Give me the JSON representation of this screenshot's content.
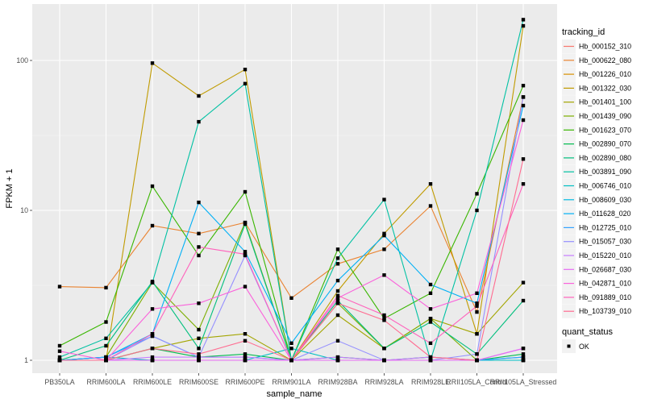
{
  "chart_data": {
    "type": "line",
    "title": "",
    "xlabel": "sample_name",
    "ylabel": "FPKM + 1",
    "yscale": "log10",
    "ylim": [
      0.9,
      200
    ],
    "y_ticks": [
      1,
      10,
      100
    ],
    "y_tick_labels": [
      "1",
      "10",
      "100"
    ],
    "grid": true,
    "categories": [
      "PB350LA",
      "RRIM600LA",
      "RRIM600LE",
      "RRIM600SE",
      "RRIM600PE",
      "RRIM901LA",
      "RRIM928BA",
      "RRIM928LA",
      "RRIM928LE",
      "RRII105LA_Control",
      "RRII105LA_Stressed"
    ],
    "legend": {
      "position": "right",
      "title": "tracking_id",
      "shape_title": "quant_status",
      "shape_label": "OK"
    },
    "series": [
      {
        "name": "Hb_000152_310",
        "color": "#F8766D",
        "values": [
          1.0,
          1.0,
          1.0,
          1.0,
          1.0,
          1.0,
          1.0,
          1.0,
          1.0,
          1.0,
          1.0
        ]
      },
      {
        "name": "Hb_000622_080",
        "color": "#EA8331",
        "values": [
          3.1,
          3.05,
          7.9,
          7.0,
          8.3,
          2.6,
          4.4,
          5.5,
          10.7,
          2.1,
          57
        ]
      },
      {
        "name": "Hb_001226_010",
        "color": "#D89000",
        "values": [
          1.0,
          1.0,
          1.0,
          1.0,
          1.0,
          1.0,
          1.0,
          1.0,
          1.0,
          1.0,
          1.0
        ]
      },
      {
        "name": "Hb_001322_030",
        "color": "#C09B00",
        "values": [
          1.0,
          1.0,
          96,
          58,
          87,
          1.0,
          2.9,
          7.0,
          15,
          1.5,
          170
        ]
      },
      {
        "name": "Hb_001401_100",
        "color": "#A3A500",
        "values": [
          1.0,
          1.0,
          1.2,
          1.4,
          1.5,
          1.0,
          2.0,
          1.2,
          1.9,
          1.5,
          3.3
        ]
      },
      {
        "name": "Hb_001439_090",
        "color": "#7CAE00",
        "values": [
          1.0,
          1.05,
          3.3,
          1.6,
          8.3,
          1.0,
          2.4,
          1.2,
          1.9,
          1.0,
          1.0
        ]
      },
      {
        "name": "Hb_001623_070",
        "color": "#39B600",
        "values": [
          1.25,
          1.8,
          14.5,
          5.0,
          13.3,
          1.0,
          5.5,
          1.9,
          2.8,
          12.9,
          68
        ]
      },
      {
        "name": "Hb_002890_070",
        "color": "#00BB4E",
        "values": [
          1.0,
          1.0,
          1.2,
          1.05,
          1.1,
          1.0,
          1.05,
          1.0,
          1.05,
          1.0,
          1.1
        ]
      },
      {
        "name": "Hb_002890_080",
        "color": "#00BF7D",
        "values": [
          1.0,
          1.25,
          3.35,
          1.2,
          8.1,
          1.0,
          2.5,
          1.2,
          1.8,
          1.1,
          2.5
        ]
      },
      {
        "name": "Hb_003891_090",
        "color": "#00C1A3",
        "values": [
          1.05,
          1.4,
          3.3,
          39,
          70,
          1.0,
          4.8,
          11.8,
          1.0,
          10.0,
          187
        ]
      },
      {
        "name": "Hb_006746_010",
        "color": "#00BFC4",
        "values": [
          1.0,
          1.05,
          1.0,
          1.0,
          1.0,
          1.2,
          1.0,
          1.0,
          1.0,
          1.0,
          1.0
        ]
      },
      {
        "name": "Hb_008609_030",
        "color": "#00BAE0",
        "values": [
          1.0,
          1.0,
          1.0,
          1.0,
          1.0,
          1.0,
          1.0,
          1.0,
          1.0,
          1.0,
          1.05
        ]
      },
      {
        "name": "Hb_011628_020",
        "color": "#00B0F6",
        "values": [
          1.0,
          1.05,
          1.5,
          11.3,
          5.3,
          1.3,
          3.4,
          6.8,
          3.2,
          2.4,
          50
        ]
      },
      {
        "name": "Hb_012725_010",
        "color": "#35A2FF",
        "values": [
          1.0,
          1.05,
          1.45,
          1.05,
          1.05,
          1.0,
          1.0,
          1.0,
          1.0,
          1.0,
          1.05
        ]
      },
      {
        "name": "Hb_015057_030",
        "color": "#9590FF",
        "values": [
          1.0,
          1.0,
          1.45,
          1.05,
          5.0,
          1.0,
          1.35,
          1.0,
          1.0,
          1.1,
          57
        ]
      },
      {
        "name": "Hb_015220_010",
        "color": "#C77CFF",
        "values": [
          1.0,
          1.0,
          1.05,
          1.05,
          1.05,
          1.0,
          1.05,
          1.0,
          1.05,
          1.0,
          1.2
        ]
      },
      {
        "name": "Hb_026687_030",
        "color": "#E76BF3",
        "values": [
          1.0,
          1.0,
          1.0,
          1.0,
          1.0,
          1.0,
          1.0,
          1.0,
          1.0,
          1.0,
          1.2
        ]
      },
      {
        "name": "Hb_042871_010",
        "color": "#FA62DB",
        "values": [
          1.15,
          1.0,
          2.2,
          2.4,
          3.1,
          1.0,
          2.6,
          3.7,
          2.2,
          2.8,
          40
        ]
      },
      {
        "name": "Hb_091889_010",
        "color": "#FF62BC",
        "values": [
          1.0,
          1.0,
          1.5,
          5.7,
          5.1,
          1.0,
          2.7,
          2.0,
          1.3,
          2.3,
          15
        ]
      },
      {
        "name": "Hb_103739_010",
        "color": "#FF6C91",
        "values": [
          1.0,
          1.0,
          1.2,
          1.1,
          1.35,
          1.0,
          2.4,
          1.85,
          1.05,
          1.0,
          22
        ]
      }
    ]
  }
}
